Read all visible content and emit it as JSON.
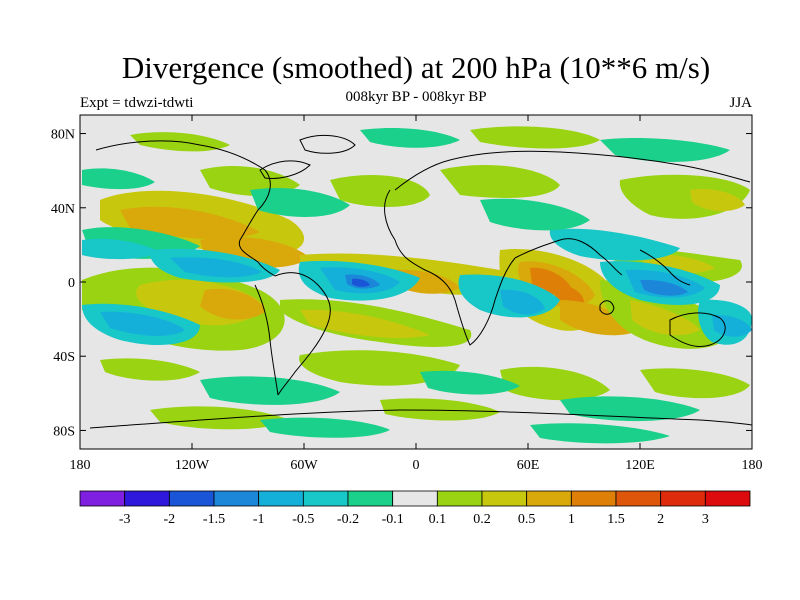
{
  "title": "Divergence (smoothed) at 200 hPa (10**6 m/s)",
  "subtitle": "008kyr BP - 008kyr BP",
  "left_label": "Expt = tdwzi-tdwti",
  "right_label": "JJA",
  "map": {
    "lat_ticks": [
      "80N",
      "40N",
      "0",
      "40S",
      "80S"
    ],
    "lat_values": [
      80,
      40,
      0,
      -40,
      -80
    ],
    "lon_ticks": [
      "180",
      "120W",
      "60W",
      "0",
      "60E",
      "120E",
      "180"
    ],
    "lon_values": [
      -180,
      -120,
      -60,
      0,
      60,
      120,
      180
    ],
    "lon_range": [
      -180,
      180
    ],
    "lat_range": [
      -90,
      90
    ],
    "background_color": "#e6e6e6"
  },
  "colorbar": {
    "colors": [
      "#7f1fe0",
      "#2f18dc",
      "#1a55d8",
      "#1c86d8",
      "#15b0da",
      "#18c7c7",
      "#1ad08a",
      "#e6e6e6",
      "#99d312",
      "#c7c80e",
      "#d9a80a",
      "#de7f08",
      "#dd560a",
      "#dd2b0c",
      "#dd0a0e"
    ],
    "labels": [
      "-3",
      "-2",
      "-1.5",
      "-1",
      "-0.5",
      "-0.2",
      "-0.1",
      "0.1",
      "0.2",
      "0.5",
      "1",
      "1.5",
      "2",
      "3"
    ]
  }
}
